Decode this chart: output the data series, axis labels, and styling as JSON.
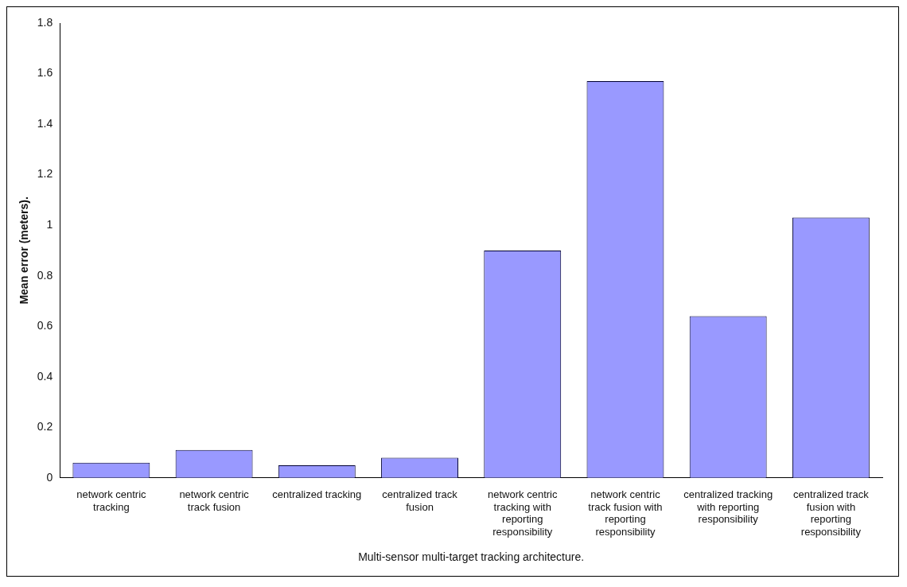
{
  "chart_data": {
    "type": "bar",
    "xlabel": "Multi-sensor multi-target tracking architecture.",
    "ylabel": "Mean error (meters).",
    "categories": [
      "network centric tracking",
      "network centric track fusion",
      "centralized tracking",
      "centralized track fusion",
      "network centric tracking with reporting responsibility",
      "network centric track fusion with reporting responsibility",
      "centralized tracking with reporting responsibility",
      "centralized track fusion with reporting responsibility"
    ],
    "values": [
      0.06,
      0.11,
      0.05,
      0.08,
      0.9,
      1.57,
      0.64,
      1.03
    ],
    "color": "#9999ff",
    "ylim": [
      0,
      1.8
    ],
    "yticks": [
      0,
      0.2,
      0.4,
      0.6,
      0.8,
      1,
      1.2,
      1.4,
      1.6,
      1.8
    ],
    "grid": false,
    "legend": false
  }
}
